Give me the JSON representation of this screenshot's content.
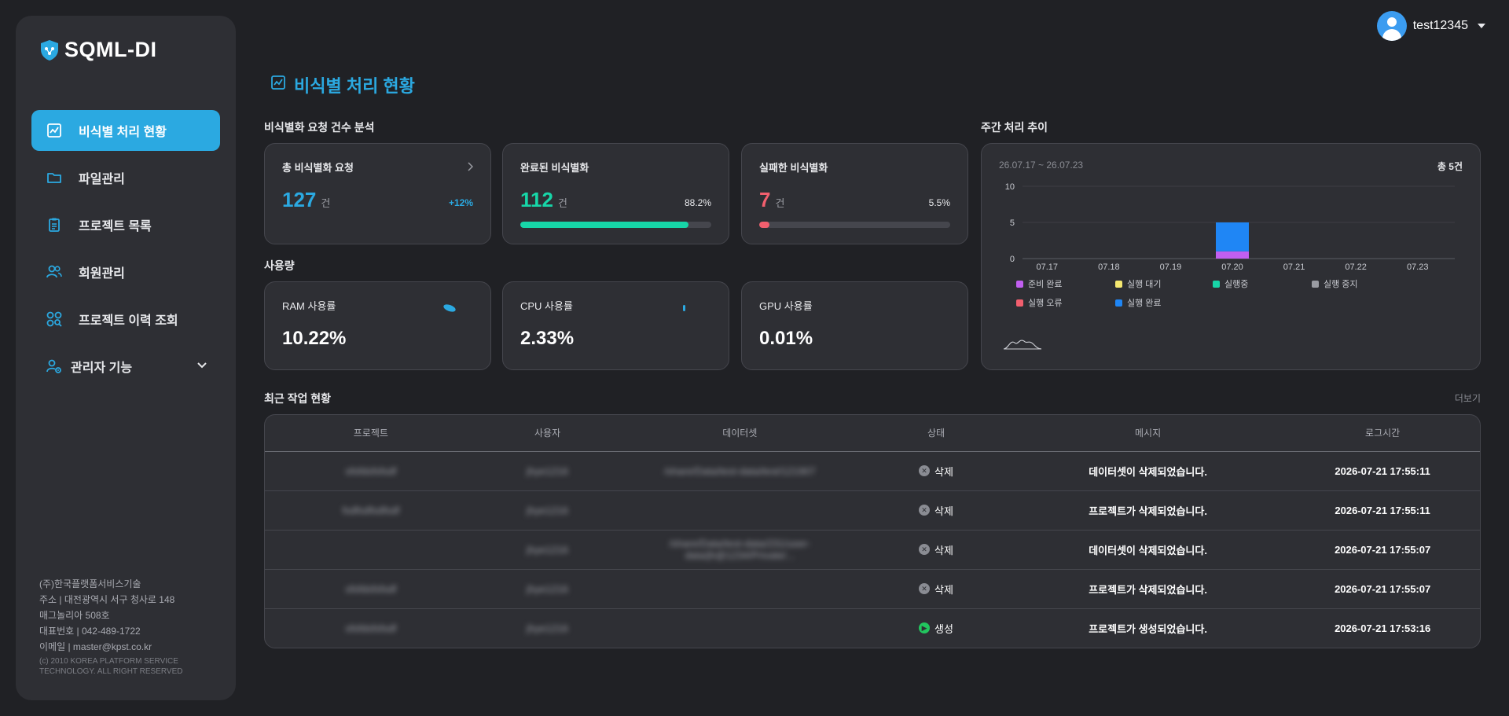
{
  "app": {
    "logo_text": "SQML-DI",
    "user": {
      "name": "test12345"
    }
  },
  "sidebar": {
    "items": [
      {
        "label": "비식별 처리 현황",
        "icon": "chart-icon",
        "active": true
      },
      {
        "label": "파일관리",
        "icon": "folder-icon"
      },
      {
        "label": "프로젝트 목록",
        "icon": "clipboard-icon"
      },
      {
        "label": "회원관리",
        "icon": "users-icon"
      },
      {
        "label": "프로젝트 이력 조회",
        "icon": "history-icon"
      },
      {
        "label": "관리자 기능",
        "icon": "admin-gear-icon",
        "expandable": true
      }
    ],
    "footer": {
      "company": "(주)한국플랫폼서비스기술",
      "address1": "주소 | 대전광역시 서구 청사로 148",
      "address2": "매그놀리아 508호",
      "phone": "대표번호 | 042-489-1722",
      "email": "이메일 | master@kpst.co.kr",
      "copyright1": "(c) 2010 KOREA PLATFORM SERVICE",
      "copyright2": "TECHNOLOGY. ALL RIGHT RESERVED"
    }
  },
  "page": {
    "title": "비식별 처리 현황"
  },
  "requests": {
    "section_title": "비식별화 요청 건수 분석",
    "total": {
      "label": "총 비식별화 요청",
      "value": "127",
      "unit": "건",
      "change": "+12%"
    },
    "completed": {
      "label": "완료된 비식별화",
      "value": "112",
      "unit": "건",
      "percent_text": "88.2%",
      "percent": 0.882
    },
    "failed": {
      "label": "실패한 비식별화",
      "value": "7",
      "unit": "건",
      "percent_text": "5.5%",
      "percent": 0.055
    }
  },
  "usage": {
    "section_title": "사용량",
    "ram": {
      "label": "RAM 사용률",
      "value": "10.22%"
    },
    "cpu": {
      "label": "CPU 사용률",
      "value": "2.33%"
    },
    "gpu": {
      "label": "GPU 사용률",
      "value": "0.01%"
    }
  },
  "weekly": {
    "section_title": "주간 처리 추이",
    "range": "26.07.17 ~ 26.07.23",
    "total": "총 5건"
  },
  "chart_data": {
    "type": "bar",
    "stacked": true,
    "categories": [
      "07.17",
      "07.18",
      "07.19",
      "07.20",
      "07.21",
      "07.22",
      "07.23"
    ],
    "yticks": [
      "0",
      "5",
      "10"
    ],
    "ylim": [
      0,
      10
    ],
    "series": [
      {
        "name": "준비 완료",
        "color": "#c15ff0",
        "values": [
          0,
          0,
          0,
          1,
          0,
          0,
          0
        ]
      },
      {
        "name": "실행 대기",
        "color": "#f5e870",
        "values": [
          0,
          0,
          0,
          0,
          0,
          0,
          0
        ]
      },
      {
        "name": "실행중",
        "color": "#17d6a8",
        "values": [
          0,
          0,
          0,
          0,
          0,
          0,
          0
        ]
      },
      {
        "name": "실행 중지",
        "color": "#9a9ca3",
        "values": [
          0,
          0,
          0,
          0,
          0,
          0,
          0
        ]
      },
      {
        "name": "실행 오류",
        "color": "#f25f6e",
        "values": [
          0,
          0,
          0,
          0,
          0,
          0,
          0
        ]
      },
      {
        "name": "실행 완료",
        "color": "#1f86f5",
        "values": [
          0,
          0,
          0,
          4,
          0,
          0,
          0
        ]
      }
    ],
    "grid": true,
    "legend_position": "bottom"
  },
  "recent": {
    "section_title": "최근 작업 현황",
    "more_label": "더보기",
    "columns": [
      "프로젝트",
      "사용자",
      "데이터셋",
      "상태",
      "메시지",
      "로그시간"
    ],
    "rows": [
      {
        "project": "sfsfdsfsfsdf",
        "user": "jhye1216",
        "dataset": "/share/Data/test-data/test/121907",
        "status": "삭제",
        "status_type": "deleted",
        "message": "데이터셋이 삭제되었습니다.",
        "time": "2026-07-21 17:55:11"
      },
      {
        "project": "fsdfsdfsdfsdf",
        "user": "jhye1216",
        "dataset": "",
        "status": "삭제",
        "status_type": "deleted",
        "message": "프로젝트가 삭제되었습니다.",
        "time": "2026-07-21 17:55:11"
      },
      {
        "project": "",
        "user": "jhye1216",
        "dataset": "/share/Data/test-data/231/user-data/jh@1234/Private/...",
        "status": "삭제",
        "status_type": "deleted",
        "message": "데이터셋이 삭제되었습니다.",
        "time": "2026-07-21 17:55:07"
      },
      {
        "project": "sfsfdsfsfsdf",
        "user": "jhye1216",
        "dataset": "",
        "status": "삭제",
        "status_type": "deleted",
        "message": "프로젝트가 삭제되었습니다.",
        "time": "2026-07-21 17:55:07"
      },
      {
        "project": "sfsfdsfsfsdf",
        "user": "jhye1216",
        "dataset": "",
        "status": "생성",
        "status_type": "created",
        "message": "프로젝트가 생성되었습니다.",
        "time": "2026-07-21 17:53:16"
      }
    ]
  },
  "colors": {
    "accent": "#2ba9e1",
    "success": "#17d6a8",
    "danger": "#f25f6e",
    "deleted_icon": "#8a8c93",
    "created_icon": "#22c55e"
  }
}
